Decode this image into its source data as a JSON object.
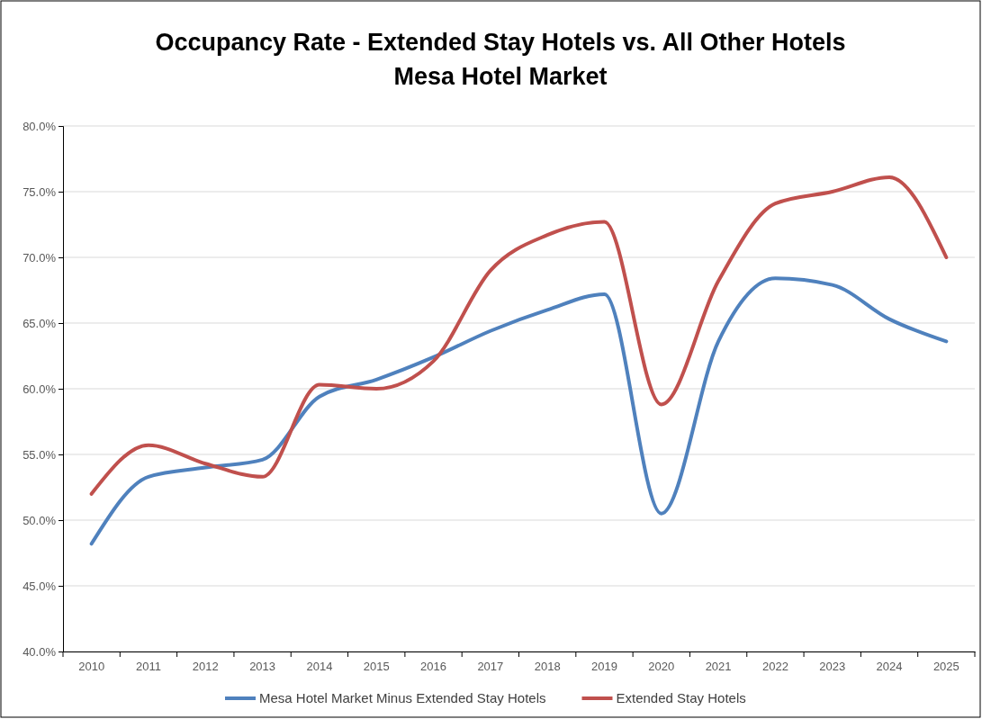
{
  "chart_data": {
    "type": "line",
    "title": "Occupancy Rate - Extended Stay Hotels vs. All Other Hotels",
    "subtitle": "Mesa Hotel Market",
    "categories": [
      "2010",
      "2011",
      "2012",
      "2013",
      "2014",
      "2015",
      "2016",
      "2017",
      "2018",
      "2019",
      "2020",
      "2021",
      "2022",
      "2023",
      "2024",
      "2025"
    ],
    "series": [
      {
        "name": "Mesa Hotel Market Minus Extended Stay Hotels",
        "color": "#4f81bd",
        "values": [
          48.2,
          53.3,
          54.0,
          54.6,
          59.4,
          60.7,
          62.4,
          64.4,
          66.0,
          67.2,
          50.5,
          63.6,
          68.4,
          67.9,
          65.3,
          63.6
        ]
      },
      {
        "name": "Extended Stay Hotels",
        "color": "#c0504d",
        "values": [
          52.0,
          55.7,
          54.3,
          53.3,
          60.3,
          60.0,
          62.1,
          69.0,
          71.7,
          72.7,
          58.8,
          68.2,
          74.1,
          75.0,
          76.1,
          70.0
        ]
      }
    ],
    "ylim": [
      40,
      80
    ],
    "yticks": [
      {
        "value": 40,
        "label": "40.0%"
      },
      {
        "value": 45,
        "label": "45.0%"
      },
      {
        "value": 50,
        "label": "50.0%"
      },
      {
        "value": 55,
        "label": "55.0%"
      },
      {
        "value": 60,
        "label": "60.0%"
      },
      {
        "value": 65,
        "label": "65.0%"
      },
      {
        "value": 70,
        "label": "70.0%"
      },
      {
        "value": 75,
        "label": "75.0%"
      },
      {
        "value": 80,
        "label": "80.0%"
      }
    ],
    "grid": "y",
    "legend": "bottom",
    "marker": "none",
    "line_style": "solid"
  }
}
